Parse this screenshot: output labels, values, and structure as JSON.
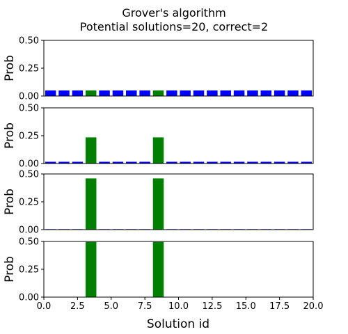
{
  "chart_data": {
    "type": "bar",
    "title_line1": "Grover's algorithm",
    "title_line2": "Potential solutions=20, correct=2",
    "xlabel": "Solution id",
    "ylabel": "Prob",
    "xlim": [
      0,
      20
    ],
    "ylim": [
      0,
      0.5
    ],
    "x_ticks": [
      "0.0",
      "2.5",
      "5.0",
      "7.5",
      "10.0",
      "12.5",
      "15.0",
      "17.5",
      "20.0"
    ],
    "y_ticks": [
      "0.00",
      "0.25",
      "0.50"
    ],
    "categories": [
      0,
      1,
      2,
      3,
      4,
      5,
      6,
      7,
      8,
      9,
      10,
      11,
      12,
      13,
      14,
      15,
      16,
      17,
      18,
      19
    ],
    "correct_ids": [
      3,
      8
    ],
    "colors": {
      "correct": "#008000",
      "incorrect": "#0000ff"
    },
    "series": [
      {
        "values": [
          0.05,
          0.05,
          0.05,
          0.05,
          0.05,
          0.05,
          0.05,
          0.05,
          0.05,
          0.05,
          0.05,
          0.05,
          0.05,
          0.05,
          0.05,
          0.05,
          0.05,
          0.05,
          0.05,
          0.05
        ]
      },
      {
        "values": [
          0.0156,
          0.0156,
          0.0156,
          0.235,
          0.0156,
          0.0156,
          0.0156,
          0.0156,
          0.235,
          0.0156,
          0.0156,
          0.0156,
          0.0156,
          0.0156,
          0.0156,
          0.0156,
          0.0156,
          0.0156,
          0.0156,
          0.0156
        ]
      },
      {
        "values": [
          0.0045,
          0.0045,
          0.0045,
          0.46,
          0.0045,
          0.0045,
          0.0045,
          0.0045,
          0.46,
          0.0045,
          0.0045,
          0.0045,
          0.0045,
          0.0045,
          0.0045,
          0.0045,
          0.0045,
          0.0045,
          0.0045,
          0.0045
        ]
      },
      {
        "values": [
          0.0005,
          0.0005,
          0.0005,
          0.495,
          0.0005,
          0.0005,
          0.0005,
          0.0005,
          0.495,
          0.0005,
          0.0005,
          0.0005,
          0.0005,
          0.0005,
          0.0005,
          0.0005,
          0.0005,
          0.0005,
          0.0005,
          0.0005
        ]
      }
    ]
  }
}
